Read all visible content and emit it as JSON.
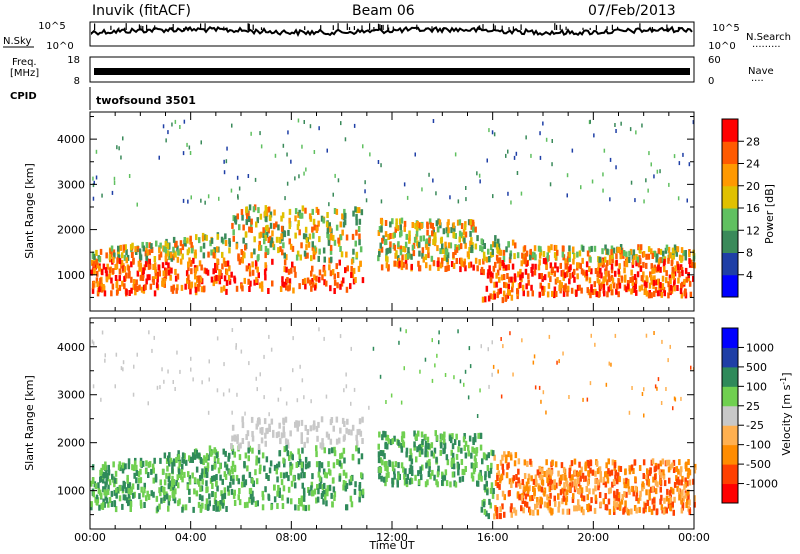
{
  "header": {
    "station": "Inuvik (fitACF)",
    "beam": "Beam 06",
    "date": "07/Feb/2013"
  },
  "top_panels": {
    "nsky_label": "N.Sky",
    "nsearch_label": "N.Search",
    "nsearch_dots": "·········",
    "noise_ticks_left": [
      "10^5",
      "10^0"
    ],
    "noise_ticks_right": [
      "10^5",
      "10^0"
    ],
    "freq_label_line1": "Freq.",
    "freq_label_line2": "[MHz]",
    "freq_ticks": [
      "18",
      "8"
    ],
    "nave_label": "Nave",
    "nave_dots": "····",
    "nave_ticks": [
      "60",
      "0"
    ],
    "cpid_label": "CPID",
    "cpid_value": "twofsound 3501"
  },
  "colors": {
    "power_scale": [
      "#0000ff",
      "#1f3fa6",
      "#3a8a5a",
      "#60c060",
      "#e0c000",
      "#ff9900",
      "#ff5a00",
      "#ff0000"
    ],
    "velocity_scale": [
      "#ff0000",
      "#ff4000",
      "#ff8c00",
      "#ffb050",
      "#c8c8c8",
      "#70d050",
      "#2f8a5a",
      "#1f3fa6",
      "#0000ff"
    ]
  },
  "chart_data": [
    {
      "type": "heatmap",
      "name": "power",
      "ylabel": "Slant Range [km]",
      "yticks": [
        "1000",
        "2000",
        "3000",
        "4000"
      ],
      "ylim": [
        200,
        4600
      ],
      "xlim": [
        0,
        24
      ],
      "colorbar": {
        "label": "Power [dB]",
        "ticks": [
          "28",
          "24",
          "20",
          "16",
          "12",
          "8",
          "4"
        ],
        "range": [
          0,
          32
        ]
      }
    },
    {
      "type": "heatmap",
      "name": "velocity",
      "ylabel": "Slant Range [km]",
      "yticks": [
        "1000",
        "2000",
        "3000",
        "4000"
      ],
      "ylim": [
        200,
        4600
      ],
      "xlim": [
        0,
        24
      ],
      "xlabel": "Time UT",
      "xticks": [
        "00:00",
        "04:00",
        "08:00",
        "12:00",
        "16:00",
        "20:00",
        "00:00"
      ],
      "colorbar": {
        "label": "Velocity [m s",
        "label_sup": "-1",
        "label_end": "]",
        "ticks": [
          "1000",
          "500",
          "100",
          "25",
          "-25",
          "-100",
          "-500",
          "-1000"
        ]
      }
    }
  ]
}
